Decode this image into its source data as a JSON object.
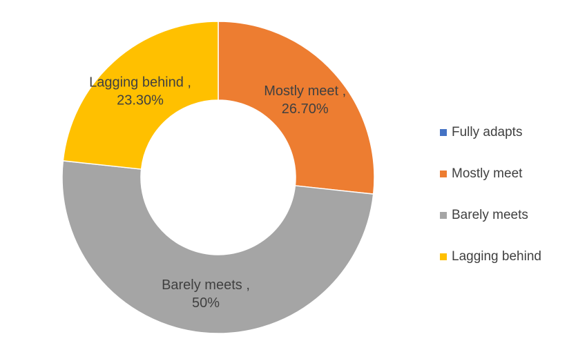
{
  "chart_data": {
    "type": "pie",
    "variant": "donut",
    "title": "",
    "categories": [
      "Fully adapts",
      "Mostly meet",
      "Barely meets",
      "Lagging behind"
    ],
    "values": [
      0,
      26.7,
      50,
      23.3
    ],
    "data_labels": [
      null,
      {
        "name": "Mostly meet ,",
        "value": "26.70%"
      },
      {
        "name": "Barely meets ,",
        "value": "50%"
      },
      {
        "name": "Lagging behind ,",
        "value": "23.30%"
      }
    ],
    "colors": [
      "#4472C4",
      "#ED7D31",
      "#A5A5A5",
      "#FFC000"
    ],
    "legend_position": "right",
    "start_angle_deg": 0
  },
  "legend": {
    "items": [
      {
        "label": "Fully adapts",
        "color": "#4472C4"
      },
      {
        "label": "Mostly meet",
        "color": "#ED7D31"
      },
      {
        "label": "Barely meets",
        "color": "#A5A5A5"
      },
      {
        "label": "Lagging behind",
        "color": "#FFC000"
      }
    ]
  }
}
